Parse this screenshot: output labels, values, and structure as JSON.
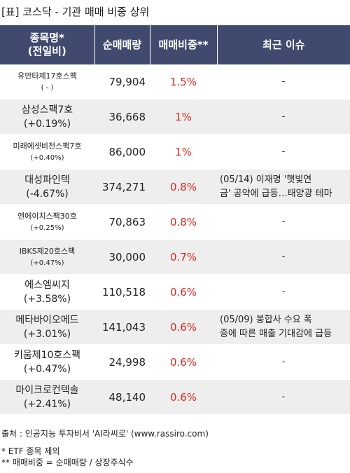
{
  "title": "[표] 코스닥 - 기관 매매 비중 상위",
  "headers": {
    "name_line1": "종목명*",
    "name_line2": "(전일비)",
    "volume": "순매매량",
    "ratio": "매매비중**",
    "issue": "최근 이슈"
  },
  "rows": [
    {
      "name": "유안타제17호스팩",
      "change": "( - )",
      "volume": "79,904",
      "ratio": "1.5%",
      "issue1": "-",
      "issue2": ""
    },
    {
      "name": "삼성스팩7호",
      "change": "(+0.19%)",
      "volume": "36,668",
      "ratio": "1%",
      "issue1": "-",
      "issue2": ""
    },
    {
      "name": "미래에셋비전스팩7호",
      "change": "(+0.40%)",
      "volume": "86,000",
      "ratio": "1%",
      "issue1": "-",
      "issue2": ""
    },
    {
      "name": "대성파인텍",
      "change": "(-4.67%)",
      "volume": "374,271",
      "ratio": "0.8%",
      "issue1": "(05/14) 이재명 '햇빛연",
      "issue2": "금' 공약에 급등…태양광 테마"
    },
    {
      "name": "엔에이치스팩30호",
      "change": "(+0.25%)",
      "volume": "70,863",
      "ratio": "0.8%",
      "issue1": "-",
      "issue2": ""
    },
    {
      "name": "IBKS제20호스팩",
      "change": "(+0.47%)",
      "volume": "30,000",
      "ratio": "0.7%",
      "issue1": "-",
      "issue2": ""
    },
    {
      "name": "에스엠씨지",
      "change": "(+3.58%)",
      "volume": "110,518",
      "ratio": "0.6%",
      "issue1": "-",
      "issue2": ""
    },
    {
      "name": "메타바이오메드",
      "change": "(+3.01%)",
      "volume": "141,043",
      "ratio": "0.6%",
      "issue1": "(05/09) 봉합사 수요 폭",
      "issue2": "증에 따른 매출 기대감에 급등"
    },
    {
      "name": "키움제10호스팩",
      "change": "(+0.47%)",
      "volume": "24,998",
      "ratio": "0.6%",
      "issue1": "-",
      "issue2": ""
    },
    {
      "name": "마이크로컨텍솔",
      "change": "(+2.41%)",
      "volume": "48,140",
      "ratio": "0.6%",
      "issue1": "-",
      "issue2": ""
    }
  ],
  "footer": {
    "source": "출처 : 인공지능 투자비서 'AI라씨로' (www.rassiro.com)",
    "note1": "* ETF 종목 제외",
    "note2": "** 매매비중 = 순매매량 / 상장주식수"
  },
  "colors": {
    "header_bg": "#3f4a6e",
    "ratio_text": "#e0281f",
    "row_alt": "#eeeeee"
  }
}
